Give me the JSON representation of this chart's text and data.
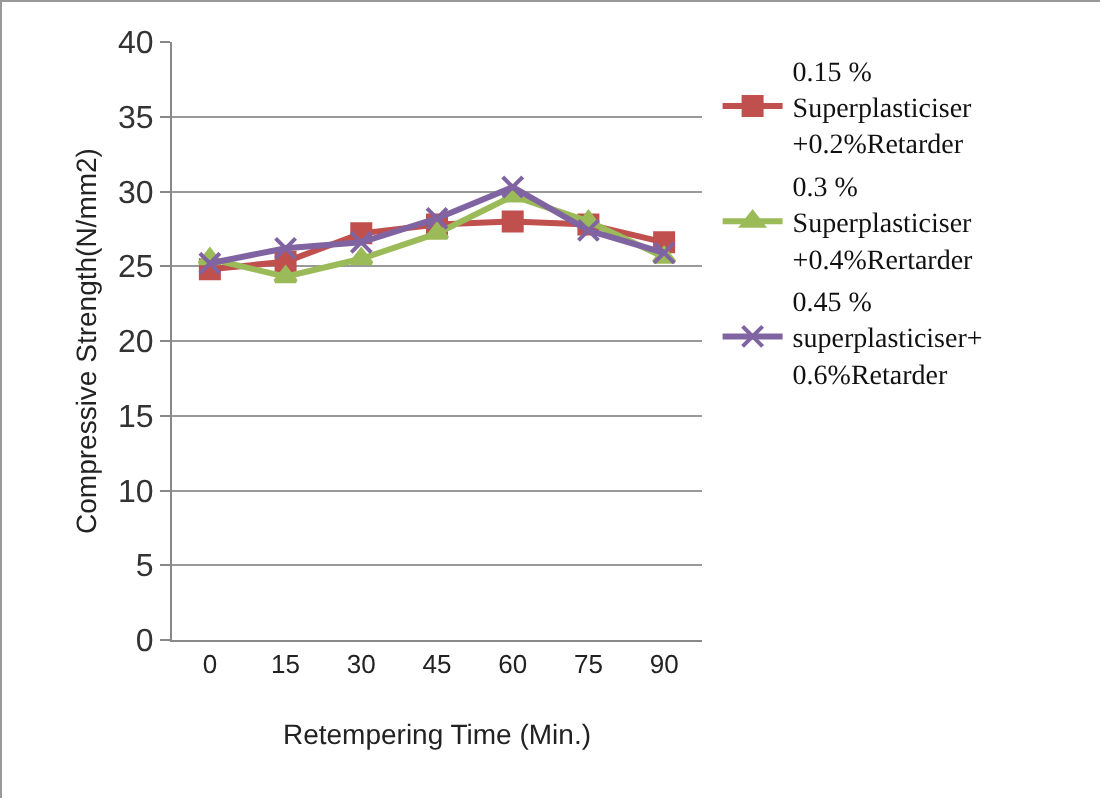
{
  "chart_data": {
    "type": "line",
    "categories": [
      "0",
      "15",
      "30",
      "45",
      "60",
      "75",
      "90"
    ],
    "xlabel": "Retempering Time (Min.)",
    "ylabel": "Compressive Strength(N/mm2)",
    "ylim": [
      0,
      40
    ],
    "yticks": [
      0,
      5,
      10,
      15,
      20,
      25,
      30,
      35,
      40
    ],
    "grid": "y",
    "legend": "right",
    "series": [
      {
        "name": "0.15 %\nSuperplasticiser\n+0.2%Retarder",
        "color": "#c0504d",
        "marker": "square",
        "values": [
          24.8,
          25.3,
          27.2,
          27.8,
          28.0,
          27.8,
          26.6
        ]
      },
      {
        "name": "0.3 %\nSuperplasticiser\n+0.4%Rertarder",
        "color": "#9bbb59",
        "marker": "triangle",
        "values": [
          25.5,
          24.3,
          25.5,
          27.2,
          29.7,
          28.0,
          25.6
        ]
      },
      {
        "name": "0.45 %\nsuperplasticiser+\n0.6%Retarder",
        "color": "#8064a2",
        "marker": "cross",
        "values": [
          25.2,
          26.2,
          26.6,
          28.2,
          30.3,
          27.4,
          25.9
        ]
      }
    ]
  }
}
